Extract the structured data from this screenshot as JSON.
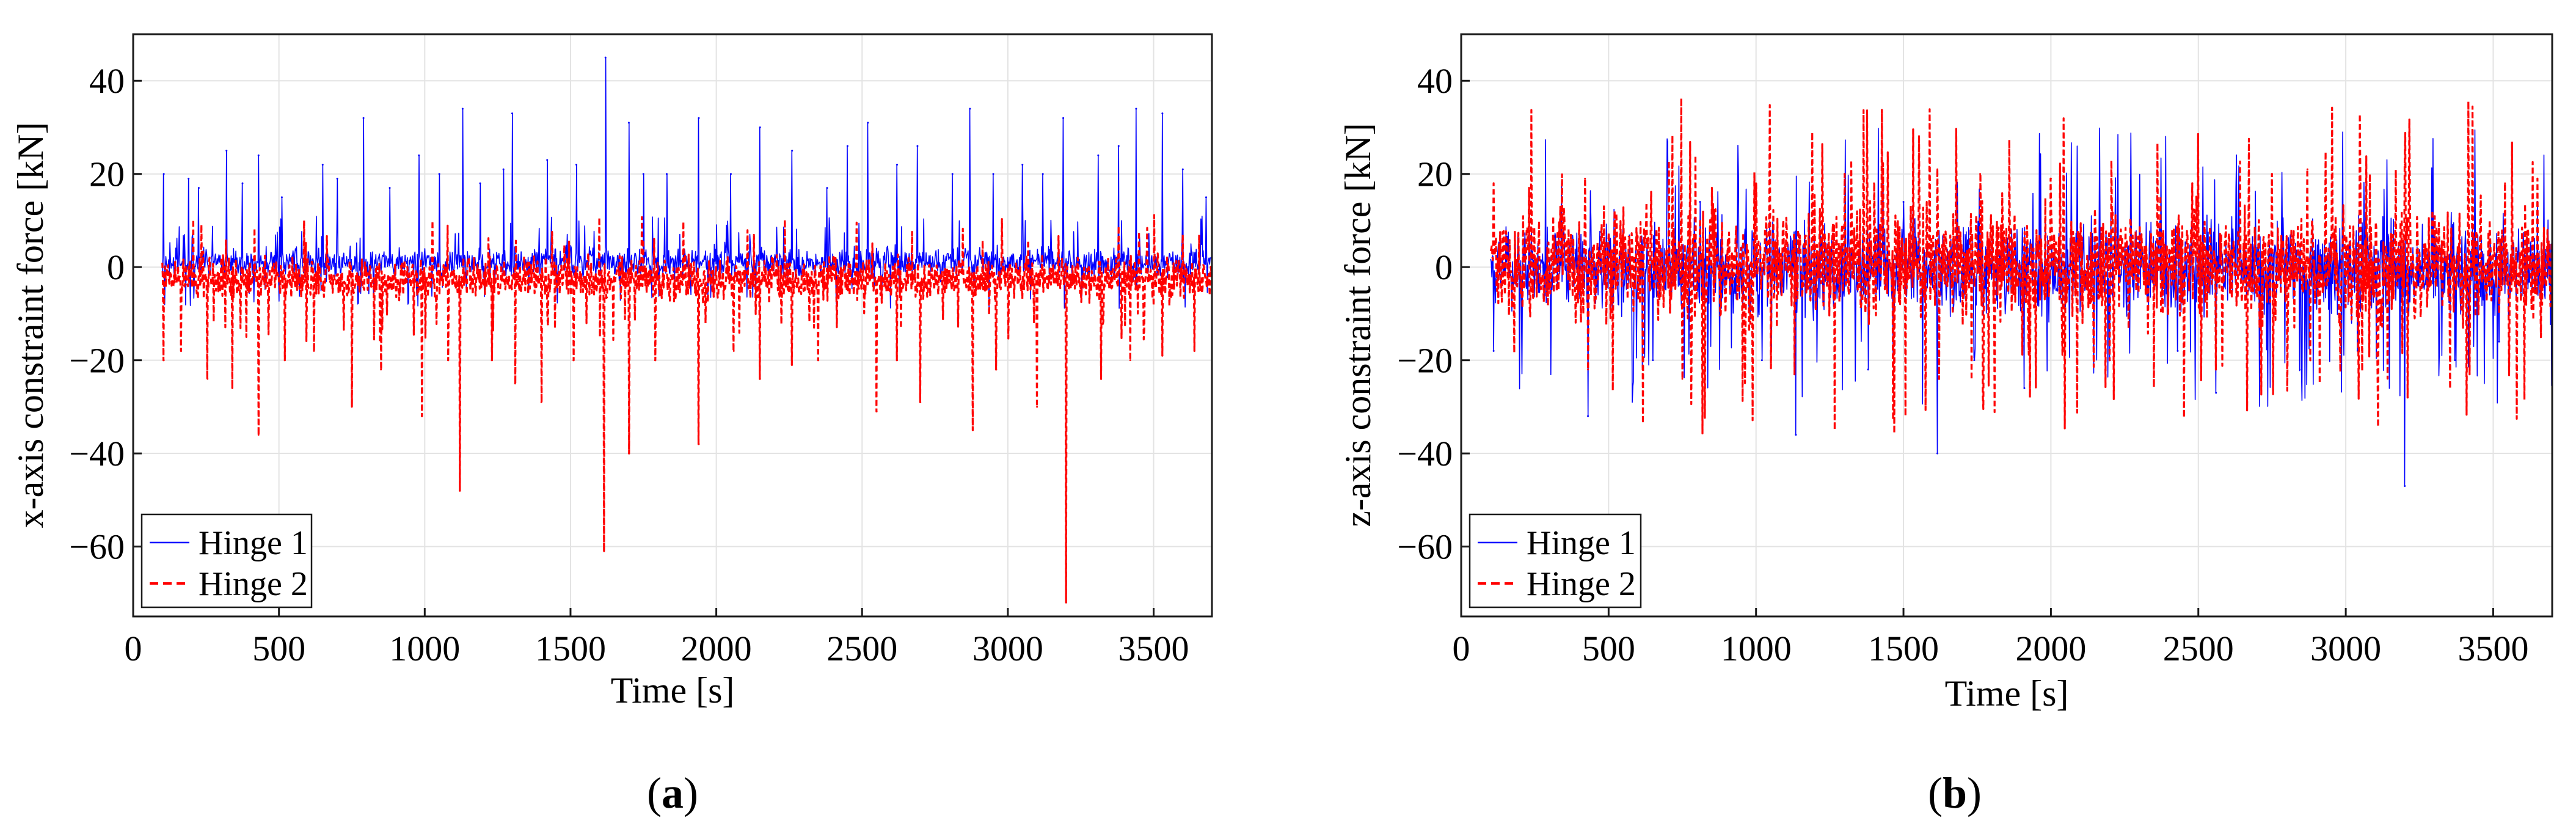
{
  "chart_data": [
    {
      "id": "a",
      "type": "line",
      "panel_label": "a",
      "title": "",
      "xlabel": "Time [s]",
      "ylabel": "x-axis constraint force [kN]",
      "xlim": [
        0,
        3700
      ],
      "ylim": [
        -75,
        50
      ],
      "xticks": [
        0,
        500,
        1000,
        1500,
        2000,
        2500,
        3000,
        3500
      ],
      "yticks": [
        -60,
        -40,
        -20,
        0,
        20,
        40
      ],
      "grid": true,
      "legend_position": "bottom-left",
      "time_range": [
        100,
        3700
      ],
      "series": [
        {
          "name": "Hinge 1",
          "color": "#0000ff",
          "line_style": "solid",
          "baseline_band": [
            -3,
            5
          ],
          "peaks": [
            {
              "x": 105,
              "y": 20
            },
            {
              "x": 190,
              "y": 19
            },
            {
              "x": 225,
              "y": 17
            },
            {
              "x": 320,
              "y": 25
            },
            {
              "x": 375,
              "y": 18
            },
            {
              "x": 430,
              "y": 24
            },
            {
              "x": 510,
              "y": 15
            },
            {
              "x": 650,
              "y": 22
            },
            {
              "x": 700,
              "y": 19
            },
            {
              "x": 790,
              "y": 32
            },
            {
              "x": 880,
              "y": 17
            },
            {
              "x": 980,
              "y": 24
            },
            {
              "x": 1050,
              "y": 20
            },
            {
              "x": 1130,
              "y": 34
            },
            {
              "x": 1190,
              "y": 18
            },
            {
              "x": 1270,
              "y": 21
            },
            {
              "x": 1300,
              "y": 33
            },
            {
              "x": 1420,
              "y": 23
            },
            {
              "x": 1520,
              "y": 22
            },
            {
              "x": 1620,
              "y": 45
            },
            {
              "x": 1700,
              "y": 31
            },
            {
              "x": 1750,
              "y": 20
            },
            {
              "x": 1830,
              "y": 20
            },
            {
              "x": 1940,
              "y": 32
            },
            {
              "x": 2050,
              "y": 20
            },
            {
              "x": 2150,
              "y": 30
            },
            {
              "x": 2260,
              "y": 25
            },
            {
              "x": 2380,
              "y": 17
            },
            {
              "x": 2450,
              "y": 26
            },
            {
              "x": 2520,
              "y": 31
            },
            {
              "x": 2620,
              "y": 22
            },
            {
              "x": 2690,
              "y": 26
            },
            {
              "x": 2810,
              "y": 20
            },
            {
              "x": 2870,
              "y": 34
            },
            {
              "x": 2950,
              "y": 20
            },
            {
              "x": 3050,
              "y": 22
            },
            {
              "x": 3120,
              "y": 20
            },
            {
              "x": 3190,
              "y": 32
            },
            {
              "x": 3310,
              "y": 24
            },
            {
              "x": 3380,
              "y": 26
            },
            {
              "x": 3440,
              "y": 34
            },
            {
              "x": 3530,
              "y": 33
            },
            {
              "x": 3600,
              "y": 21
            },
            {
              "x": 3680,
              "y": 15
            }
          ]
        },
        {
          "name": "Hinge 2",
          "color": "#ff0000",
          "line_style": "dashed",
          "baseline_band": [
            -8,
            3
          ],
          "peaks": [
            {
              "x": 105,
              "y": -20
            },
            {
              "x": 165,
              "y": -18
            },
            {
              "x": 255,
              "y": -24
            },
            {
              "x": 340,
              "y": -26
            },
            {
              "x": 430,
              "y": -36
            },
            {
              "x": 520,
              "y": -20
            },
            {
              "x": 620,
              "y": -18
            },
            {
              "x": 750,
              "y": -30
            },
            {
              "x": 850,
              "y": -22
            },
            {
              "x": 990,
              "y": -32
            },
            {
              "x": 1080,
              "y": -20
            },
            {
              "x": 1120,
              "y": -48
            },
            {
              "x": 1230,
              "y": -20
            },
            {
              "x": 1310,
              "y": -25
            },
            {
              "x": 1400,
              "y": -29
            },
            {
              "x": 1510,
              "y": -20
            },
            {
              "x": 1615,
              "y": -61
            },
            {
              "x": 1700,
              "y": -40
            },
            {
              "x": 1790,
              "y": -20
            },
            {
              "x": 1940,
              "y": -38
            },
            {
              "x": 2060,
              "y": -18
            },
            {
              "x": 2150,
              "y": -24
            },
            {
              "x": 2260,
              "y": -21
            },
            {
              "x": 2350,
              "y": -20
            },
            {
              "x": 2550,
              "y": -31
            },
            {
              "x": 2620,
              "y": -20
            },
            {
              "x": 2700,
              "y": -29
            },
            {
              "x": 2880,
              "y": -35
            },
            {
              "x": 2960,
              "y": -22
            },
            {
              "x": 3100,
              "y": -30
            },
            {
              "x": 3200,
              "y": -72
            },
            {
              "x": 3320,
              "y": -24
            },
            {
              "x": 3420,
              "y": -20
            },
            {
              "x": 3530,
              "y": -19
            },
            {
              "x": 3640,
              "y": -18
            }
          ]
        }
      ]
    },
    {
      "id": "b",
      "type": "line",
      "panel_label": "b",
      "title": "",
      "xlabel": "Time [s]",
      "ylabel": "z-axis constraint force [kN]",
      "xlim": [
        0,
        3700
      ],
      "ylim": [
        -75,
        50
      ],
      "xticks": [
        0,
        500,
        1000,
        1500,
        2000,
        2500,
        3000,
        3500
      ],
      "yticks": [
        -60,
        -40,
        -20,
        0,
        20,
        40
      ],
      "grid": true,
      "legend_position": "bottom-left",
      "time_range": [
        100,
        3700
      ],
      "series": [
        {
          "name": "Hinge 1",
          "color": "#0000ff",
          "line_style": "solid",
          "baseline_band": [
            -12,
            12
          ],
          "peaks": [
            {
              "x": 110,
              "y": -18
            },
            {
              "x": 230,
              "y": 12
            },
            {
              "x": 430,
              "y": -32
            },
            {
              "x": 650,
              "y": -20
            },
            {
              "x": 810,
              "y": 14
            },
            {
              "x": 1020,
              "y": -20
            },
            {
              "x": 1135,
              "y": -36
            },
            {
              "x": 1380,
              "y": -22
            },
            {
              "x": 1500,
              "y": 14
            },
            {
              "x": 1615,
              "y": -40
            },
            {
              "x": 1740,
              "y": -20
            },
            {
              "x": 1910,
              "y": -26
            },
            {
              "x": 2200,
              "y": -20
            },
            {
              "x": 2430,
              "y": -18
            },
            {
              "x": 2560,
              "y": -27
            },
            {
              "x": 2850,
              "y": -22
            },
            {
              "x": 3040,
              "y": -18
            },
            {
              "x": 3200,
              "y": -47
            },
            {
              "x": 3370,
              "y": -20
            },
            {
              "x": 3520,
              "y": -16
            },
            {
              "x": 3650,
              "y": 14
            }
          ]
        },
        {
          "name": "Hinge 2",
          "color": "#ff0000",
          "line_style": "dashed",
          "baseline_band": [
            -14,
            15
          ],
          "peaks": [
            {
              "x": 110,
              "y": 18
            },
            {
              "x": 230,
              "y": 17
            },
            {
              "x": 420,
              "y": 19
            },
            {
              "x": 430,
              "y": -22
            },
            {
              "x": 750,
              "y": -24
            },
            {
              "x": 850,
              "y": 17
            },
            {
              "x": 1000,
              "y": 18
            },
            {
              "x": 1130,
              "y": -23
            },
            {
              "x": 1300,
              "y": 20
            },
            {
              "x": 1400,
              "y": 18
            },
            {
              "x": 1615,
              "y": 21
            },
            {
              "x": 1620,
              "y": -24
            },
            {
              "x": 1760,
              "y": 20
            },
            {
              "x": 2000,
              "y": 19
            },
            {
              "x": 2200,
              "y": -20
            },
            {
              "x": 2480,
              "y": 18
            },
            {
              "x": 2560,
              "y": -22
            },
            {
              "x": 2750,
              "y": 20
            },
            {
              "x": 2870,
              "y": 21
            },
            {
              "x": 2880,
              "y": -20
            },
            {
              "x": 3050,
              "y": 18
            },
            {
              "x": 3200,
              "y": 22
            },
            {
              "x": 3210,
              "y": -28
            },
            {
              "x": 3420,
              "y": -23
            },
            {
              "x": 3540,
              "y": 18
            },
            {
              "x": 3650,
              "y": 19
            }
          ]
        }
      ]
    }
  ]
}
